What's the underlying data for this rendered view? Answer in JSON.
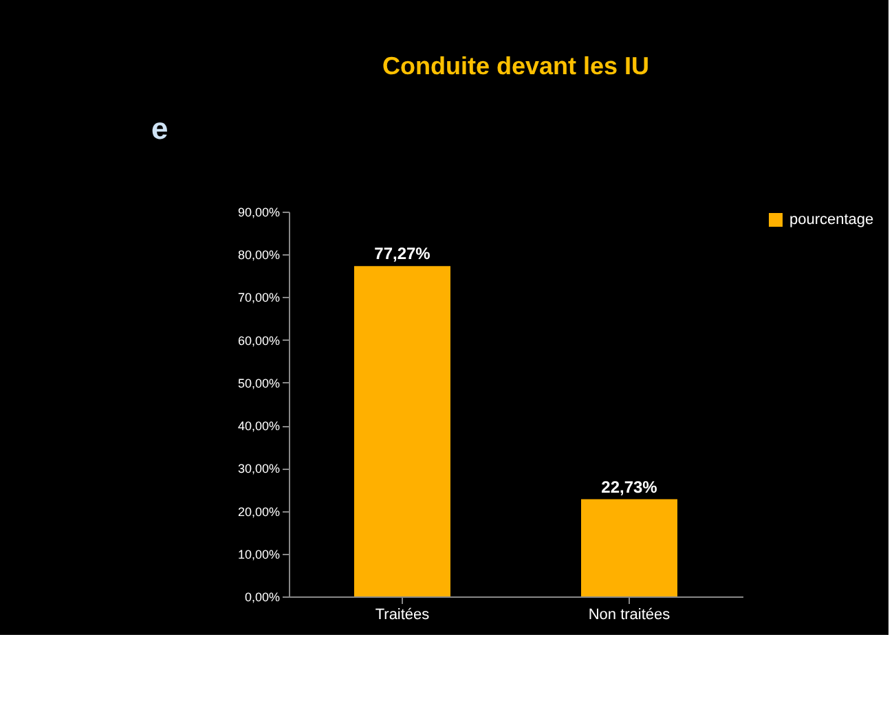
{
  "chart_data": {
    "type": "bar",
    "title": "Conduite devant les IU",
    "categories": [
      "Traitées",
      "Non traitées"
    ],
    "series": [
      {
        "name": "pourcentage",
        "color": "#ffb000",
        "values": [
          77.27,
          22.73
        ]
      }
    ],
    "value_labels": [
      "77,27%",
      "22,73%"
    ],
    "ylim": [
      0,
      90
    ],
    "yticks": [
      {
        "value": 0,
        "label": "0,00%"
      },
      {
        "value": 10,
        "label": "10,00%"
      },
      {
        "value": 20,
        "label": "20,00%"
      },
      {
        "value": 30,
        "label": "30,00%"
      },
      {
        "value": 40,
        "label": "40,00%"
      },
      {
        "value": 50,
        "label": "50,00%"
      },
      {
        "value": 60,
        "label": "60,00%"
      },
      {
        "value": 70,
        "label": "70,00%"
      },
      {
        "value": 80,
        "label": "80,00%"
      },
      {
        "value": 90,
        "label": "90,00%"
      }
    ],
    "annotations": [
      "e"
    ],
    "legend": "right",
    "grid": false
  }
}
